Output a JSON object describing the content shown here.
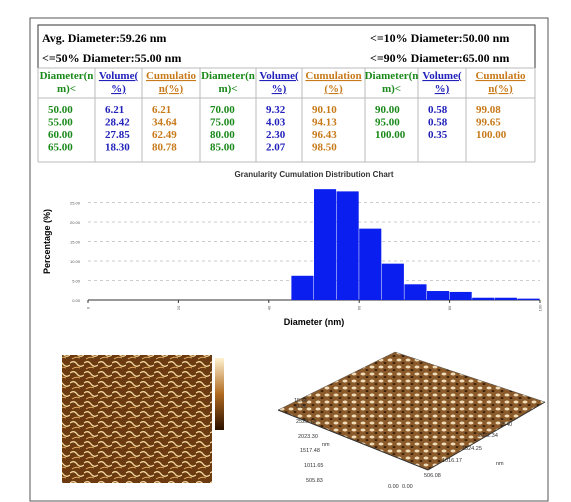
{
  "header": {
    "avg": "Avg. Diameter:59.26 nm",
    "d10": "<=10% Diameter:50.00 nm",
    "d50": "<=50% Diameter:55.00 nm",
    "d90": "<=90% Diameter:65.00 nm"
  },
  "table": {
    "columns": [
      [
        "Diameter(n",
        "m)<"
      ],
      [
        "Volume(",
        "%)"
      ],
      [
        "Cumulatio",
        "n(%)"
      ],
      [
        "Diameter(n",
        "m)<"
      ],
      [
        "Volume(",
        "%)"
      ],
      [
        "Cumulation",
        "(%)"
      ],
      [
        "Diameter(n",
        "m)<"
      ],
      [
        "Volume(",
        "%)"
      ],
      [
        "Cumulatio",
        "n(%)"
      ]
    ],
    "rows": [
      [
        "50.00",
        "6.21",
        "6.21",
        "70.00",
        "9.32",
        "90.10",
        "90.00",
        "0.58",
        "99.08"
      ],
      [
        "55.00",
        "28.42",
        "34.64",
        "75.00",
        "4.03",
        "94.13",
        "95.00",
        "0.58",
        "99.65"
      ],
      [
        "60.00",
        "27.85",
        "62.49",
        "80.00",
        "2.30",
        "96.43",
        "100.00",
        "0.35",
        "100.00"
      ],
      [
        "65.00",
        "18.30",
        "80.78",
        "85.00",
        "2.07",
        "98.50",
        null,
        null,
        null
      ]
    ]
  },
  "chart": {
    "title": "Granularity Cumulation Distribution Chart",
    "y_label": "Percentage (%)",
    "x_label": "Diameter (nm)",
    "xlim": [
      0,
      100
    ],
    "xticks": [
      0,
      20,
      40,
      60,
      80,
      100
    ],
    "ylim": [
      0,
      30
    ],
    "yticks": [
      {
        "value": 0,
        "label": "0.00"
      },
      {
        "value": 5,
        "label": "5.00"
      },
      {
        "value": 10,
        "label": "10.00"
      },
      {
        "value": 15,
        "label": "15.00"
      },
      {
        "value": 20,
        "label": "20.00"
      },
      {
        "value": 25,
        "label": "25.00"
      }
    ],
    "color": "#0a1ef0",
    "grid": true
  },
  "afm_3d": {
    "labels": [
      "15.66",
      "-0.26",
      "2529.13",
      "2023.30",
      "1517.48",
      "1011.65",
      "505.83",
      "0.00",
      "0.00",
      "506.08",
      "1016.17",
      "1524.25",
      "2032.34",
      "2540",
      "nm",
      "nm"
    ]
  }
}
